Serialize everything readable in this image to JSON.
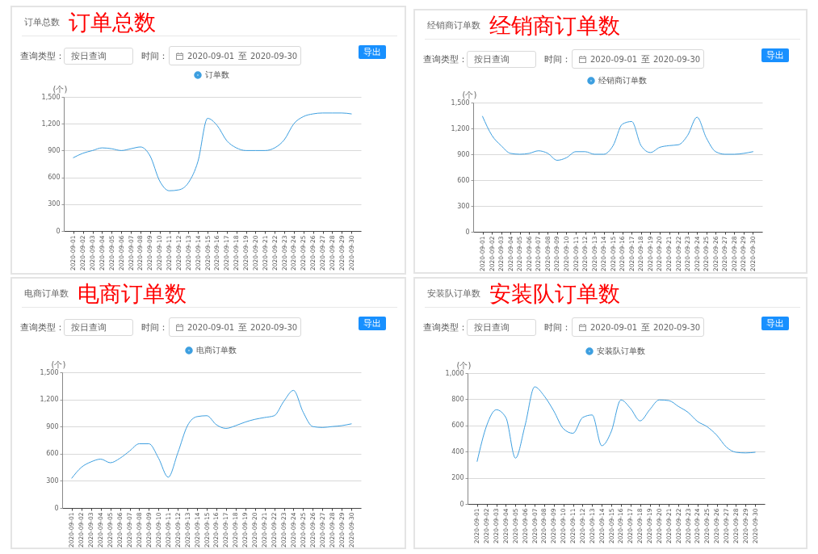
{
  "chart_data": [
    {
      "type": "line",
      "title": "订单总数",
      "annotations": [
        "订单总数",
        "查询类型：",
        "按日查询",
        "时间：",
        "2020-09-01",
        "至",
        "2020-09-30",
        "导出"
      ],
      "ylabel": "(个)",
      "categories": [
        "2020-09-01",
        "2020-09-02",
        "2020-09-03",
        "2020-09-04",
        "2020-09-05",
        "2020-09-06",
        "2020-09-07",
        "2020-09-08",
        "2020-09-09",
        "2020-09-10",
        "2020-09-11",
        "2020-09-12",
        "2020-09-13",
        "2020-09-14",
        "2020-09-15",
        "2020-09-16",
        "2020-09-17",
        "2020-09-18",
        "2020-09-19",
        "2020-09-20",
        "2020-09-21",
        "2020-09-22",
        "2020-09-23",
        "2020-09-24",
        "2020-09-25",
        "2020-09-26",
        "2020-09-27",
        "2020-09-28",
        "2020-09-29",
        "2020-09-30"
      ],
      "series": [
        {
          "name": "订单数",
          "color": "#3d9fe0",
          "values": [
            820,
            870,
            900,
            930,
            920,
            900,
            920,
            940,
            840,
            560,
            450,
            460,
            540,
            780,
            1260,
            1180,
            1010,
            930,
            900,
            900,
            900,
            930,
            1020,
            1200,
            1280,
            1310,
            1320,
            1320,
            1320,
            1310
          ]
        }
      ],
      "ylim": [
        0,
        1500
      ],
      "yticks": [
        0,
        300,
        600,
        900,
        {
          "value": 1200,
          "label": "1,200"
        },
        {
          "value": 1500,
          "label": "1,500"
        }
      ],
      "grid": "y",
      "legend": "top"
    },
    {
      "type": "line",
      "title": "经销商订单数",
      "annotations": [
        "经销商订单数",
        "查询类型：",
        "按日查询",
        "时间：",
        "2020-09-01",
        "至",
        "2020-09-30",
        "导出"
      ],
      "ylabel": "(个)",
      "categories": [
        "2020-09-01",
        "2020-09-02",
        "2020-09-03",
        "2020-09-04",
        "2020-09-05",
        "2020-09-06",
        "2020-09-07",
        "2020-09-08",
        "2020-09-09",
        "2020-09-10",
        "2020-09-11",
        "2020-09-12",
        "2020-09-13",
        "2020-09-14",
        "2020-09-15",
        "2020-09-16",
        "2020-09-17",
        "2020-09-18",
        "2020-09-19",
        "2020-09-20",
        "2020-09-21",
        "2020-09-22",
        "2020-09-23",
        "2020-09-24",
        "2020-09-25",
        "2020-09-26",
        "2020-09-27",
        "2020-09-28",
        "2020-09-29",
        "2020-09-30"
      ],
      "series": [
        {
          "name": "经销商订单数",
          "color": "#3d9fe0",
          "values": [
            1340,
            1120,
            1000,
            910,
            900,
            910,
            940,
            910,
            830,
            860,
            930,
            930,
            900,
            900,
            1000,
            1250,
            1280,
            1000,
            920,
            980,
            1000,
            1010,
            1120,
            1330,
            1090,
            930,
            900,
            900,
            910,
            930
          ]
        }
      ],
      "ylim": [
        0,
        1500
      ],
      "yticks": [
        0,
        300,
        600,
        900,
        {
          "value": 1200,
          "label": "1,200"
        },
        {
          "value": 1500,
          "label": "1,500"
        }
      ],
      "grid": "y",
      "legend": "top"
    },
    {
      "type": "line",
      "title": "电商订单数",
      "annotations": [
        "电商订单数",
        "查询类型：",
        "按日查询",
        "时间：",
        "2020-09-01",
        "至",
        "2020-09-30",
        "导出"
      ],
      "ylabel": "(个)",
      "categories": [
        "2020-09-01",
        "2020-09-02",
        "2020-09-03",
        "2020-09-04",
        "2020-09-05",
        "2020-09-06",
        "2020-09-07",
        "2020-09-08",
        "2020-09-09",
        "2020-09-10",
        "2020-09-11",
        "2020-09-12",
        "2020-09-13",
        "2020-09-14",
        "2020-09-15",
        "2020-09-16",
        "2020-09-17",
        "2020-09-18",
        "2020-09-19",
        "2020-09-20",
        "2020-09-21",
        "2020-09-22",
        "2020-09-23",
        "2020-09-24",
        "2020-09-25",
        "2020-09-26",
        "2020-09-27",
        "2020-09-28",
        "2020-09-29",
        "2020-09-30"
      ],
      "series": [
        {
          "name": "电商订单数",
          "color": "#3d9fe0",
          "values": [
            330,
            450,
            510,
            540,
            500,
            550,
            630,
            710,
            710,
            550,
            340,
            610,
            910,
            1010,
            1020,
            920,
            880,
            910,
            950,
            980,
            1000,
            1020,
            1180,
            1300,
            1060,
            900,
            890,
            900,
            910,
            930
          ]
        }
      ],
      "ylim": [
        0,
        1500
      ],
      "yticks": [
        0,
        300,
        600,
        900,
        {
          "value": 1200,
          "label": "1,200"
        },
        {
          "value": 1500,
          "label": "1,500"
        }
      ],
      "grid": "y",
      "legend": "top"
    },
    {
      "type": "line",
      "title": "安装队订单数",
      "annotations": [
        "安装队订单数",
        "查询类型：",
        "按日查询",
        "时间：",
        "2020-09-01",
        "至",
        "2020-09-30",
        "导出"
      ],
      "ylabel": "(个)",
      "categories": [
        "2020-09-01",
        "2020-09-02",
        "2020-09-03",
        "2020-09-04",
        "2020-09-05",
        "2020-09-06",
        "2020-09-07",
        "2020-09-08",
        "2020-09-09",
        "2020-09-10",
        "2020-09-11",
        "2020-09-12",
        "2020-09-13",
        "2020-09-14",
        "2020-09-15",
        "2020-09-16",
        "2020-09-17",
        "2020-09-18",
        "2020-09-19",
        "2020-09-20",
        "2020-09-21",
        "2020-09-22",
        "2020-09-23",
        "2020-09-24",
        "2020-09-25",
        "2020-09-26",
        "2020-09-27",
        "2020-09-28",
        "2020-09-29",
        "2020-09-30"
      ],
      "series": [
        {
          "name": "安装队订单数",
          "color": "#3d9fe0",
          "values": [
            325,
            600,
            720,
            660,
            350,
            600,
            895,
            825,
            710,
            575,
            540,
            660,
            680,
            445,
            555,
            795,
            730,
            635,
            720,
            795,
            790,
            745,
            700,
            630,
            590,
            525,
            435,
            395,
            390,
            395
          ]
        }
      ],
      "ylim": [
        0,
        1000
      ],
      "yticks": [
        0,
        200,
        400,
        600,
        800,
        {
          "value": 1000,
          "label": "1,000"
        }
      ],
      "grid": "y",
      "legend": "top"
    }
  ]
}
